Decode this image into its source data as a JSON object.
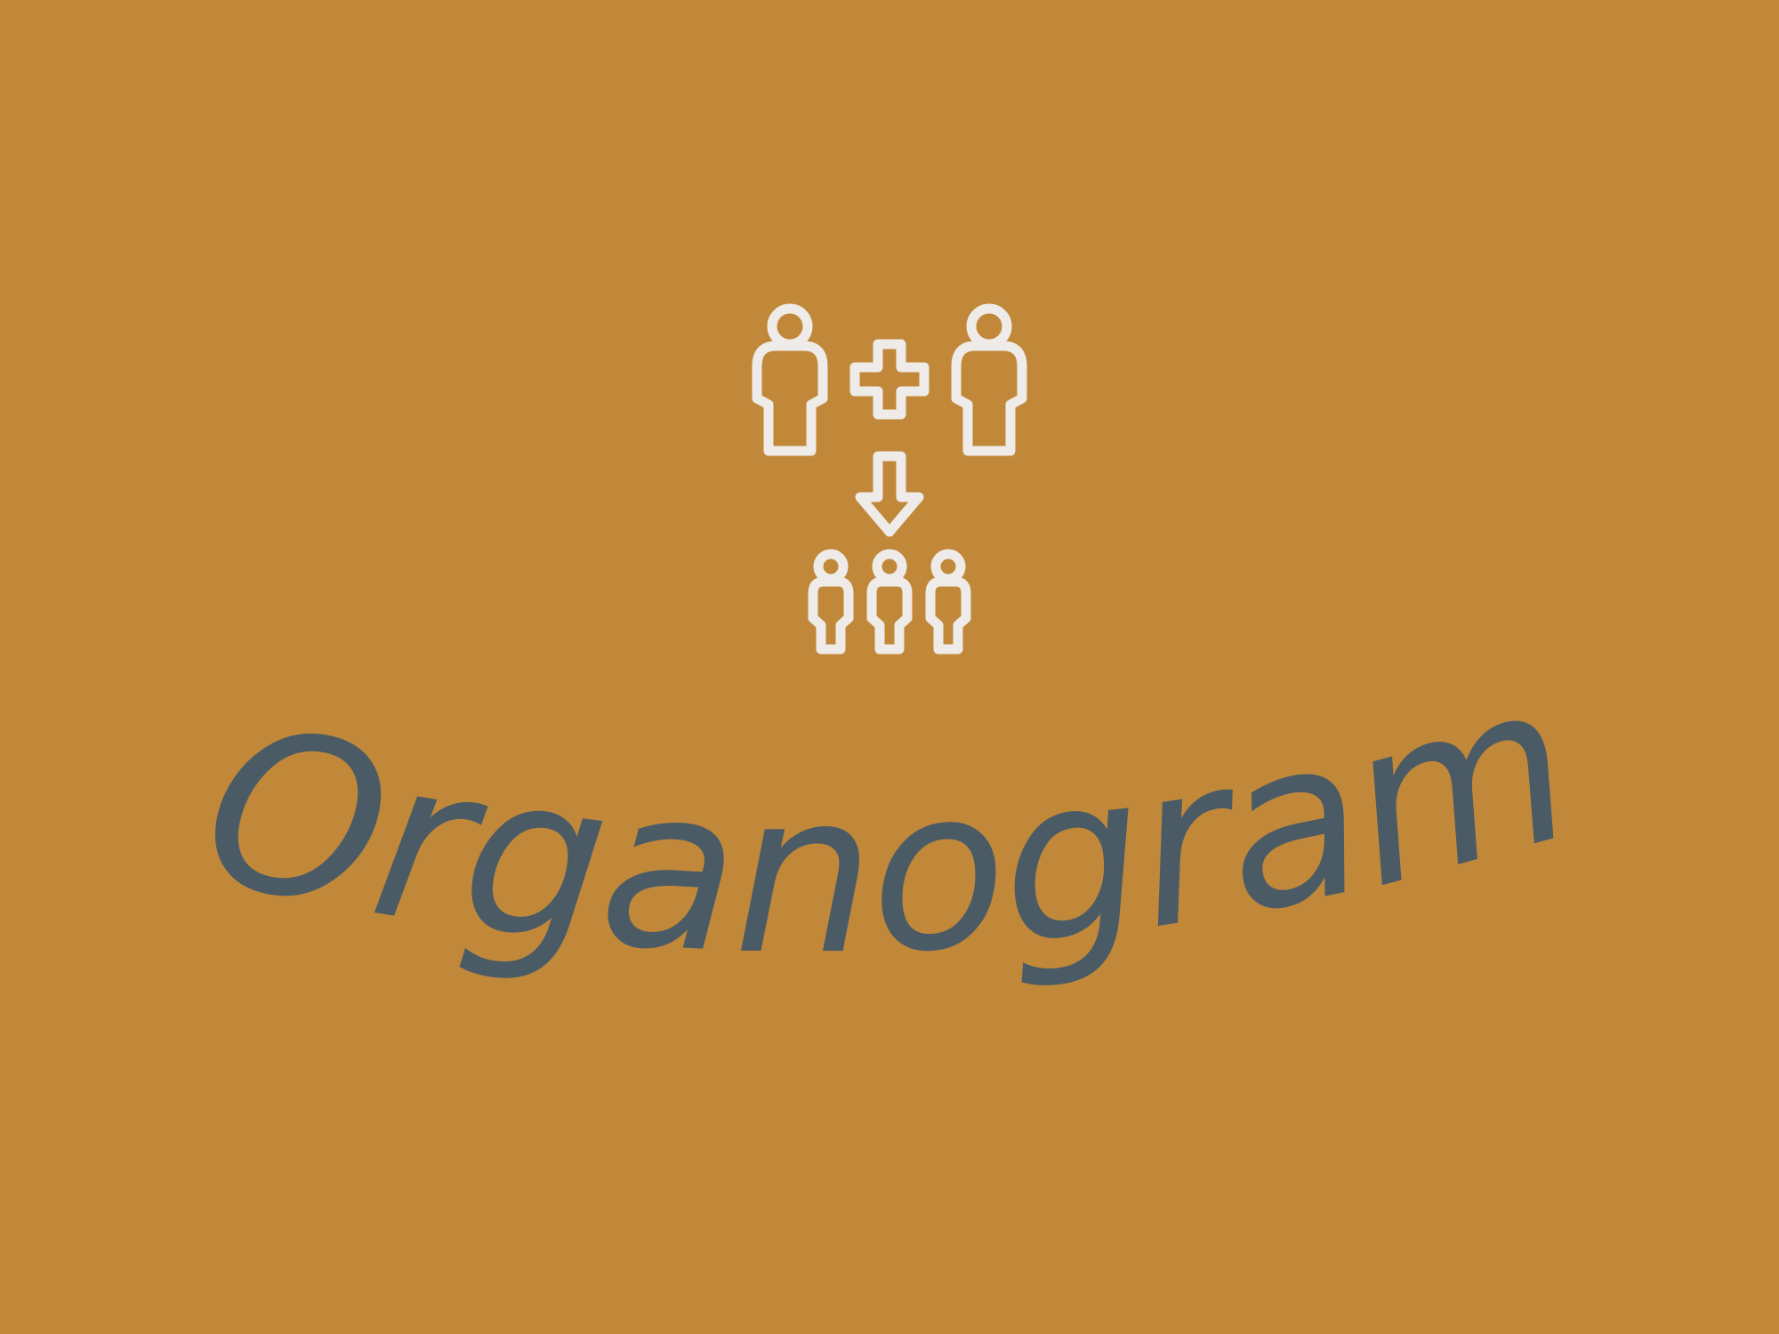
{
  "colors": {
    "background": "#C1883A",
    "icon_stroke": "#EEEBE8",
    "title": "#4A5B66"
  },
  "icons": {
    "parent_left": "person-icon",
    "plus": "plus-icon",
    "parent_right": "person-icon",
    "arrow": "arrow-down-icon",
    "children": [
      "child-person-icon",
      "child-person-icon",
      "child-person-icon"
    ]
  },
  "title": {
    "text": "Organogram"
  }
}
